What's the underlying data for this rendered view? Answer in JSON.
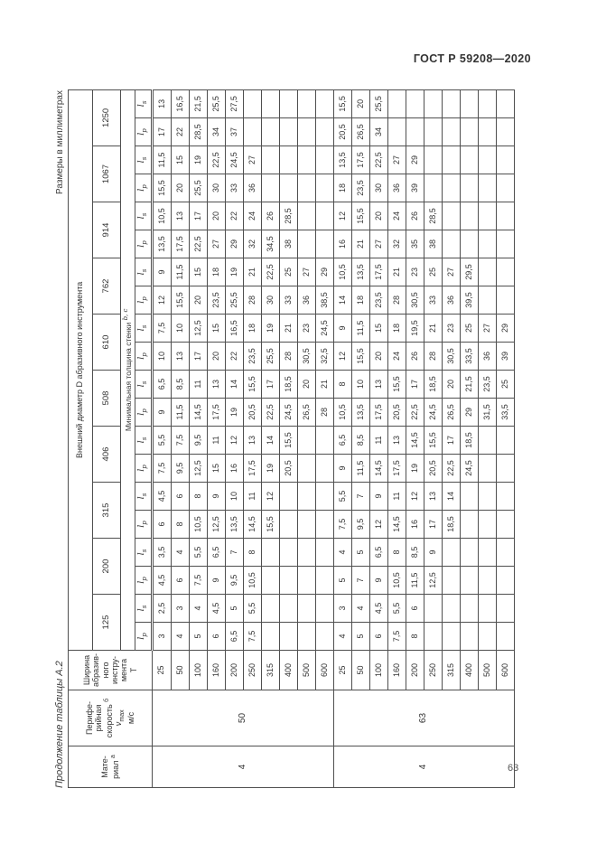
{
  "page": {
    "doc_header": "ГОСТ Р 59208—2020",
    "page_number": "63",
    "table_caption": "Продолжение таблицы А.2",
    "units_note": "Размеры в миллиметрах"
  },
  "table": {
    "diameter_header": "Внешний диаметр D абразивного инструмента",
    "thickness_header": "Минимальная толщина стенки",
    "thickness_note": "b, c",
    "diameters": [
      "125",
      "200",
      "315",
      "406",
      "508",
      "610",
      "762",
      "914",
      "1067",
      "1250"
    ],
    "subcol_base": "l",
    "subcol_subs": [
      "p",
      "s"
    ],
    "stub": {
      "material_lines": [
        "Мате-",
        "риал"
      ],
      "material_note": "а",
      "speed_lines": [
        "Перифе-",
        "рийная",
        "скорость"
      ],
      "speed_note": "б",
      "speed_symbol_base": "v",
      "speed_symbol_sub": "max",
      "speed_units": "м/с",
      "width_lines": [
        "Ширина",
        "абразив-",
        "ного",
        "инстру-",
        "мента",
        "Т"
      ]
    },
    "sections": [
      {
        "material": "4",
        "speed": "50",
        "rows": [
          {
            "t": "25",
            "v": [
              "3",
              "2,5",
              "4,5",
              "3,5",
              "6",
              "4,5",
              "7,5",
              "5,5",
              "9",
              "6,5",
              "10",
              "7,5",
              "12",
              "9",
              "13,5",
              "10,5",
              "15,5",
              "11,5",
              "17",
              "13"
            ]
          },
          {
            "t": "50",
            "v": [
              "4",
              "3",
              "6",
              "4",
              "8",
              "6",
              "9,5",
              "7,5",
              "11,5",
              "8,5",
              "13",
              "10",
              "15,5",
              "11,5",
              "17,5",
              "13",
              "20",
              "15",
              "22",
              "16,5"
            ]
          },
          {
            "t": "100",
            "v": [
              "5",
              "4",
              "7,5",
              "5,5",
              "10,5",
              "8",
              "12,5",
              "9,5",
              "14,5",
              "11",
              "17",
              "12,5",
              "20",
              "15",
              "22,5",
              "17",
              "25,5",
              "19",
              "28,5",
              "21,5"
            ]
          },
          {
            "t": "160",
            "v": [
              "6",
              "4,5",
              "9",
              "6,5",
              "12,5",
              "9",
              "15",
              "11",
              "17,5",
              "13",
              "20",
              "15",
              "23,5",
              "18",
              "27",
              "20",
              "30",
              "22,5",
              "34",
              "25,5"
            ]
          },
          {
            "t": "200",
            "v": [
              "6,5",
              "5",
              "9,5",
              "7",
              "13,5",
              "10",
              "16",
              "12",
              "19",
              "14",
              "22",
              "16,5",
              "25,5",
              "19",
              "29",
              "22",
              "33",
              "24,5",
              "37",
              "27,5"
            ]
          },
          {
            "t": "250",
            "v": [
              "7,5",
              "5,5",
              "10,5",
              "8",
              "14,5",
              "11",
              "17,5",
              "13",
              "20,5",
              "15,5",
              "23,5",
              "18",
              "28",
              "21",
              "32",
              "24",
              "36",
              "27",
              "",
              ""
            ]
          },
          {
            "t": "315",
            "v": [
              "",
              "",
              "",
              "",
              "15,5",
              "12",
              "19",
              "14",
              "22,5",
              "17",
              "25,5",
              "19",
              "30",
              "22,5",
              "34,5",
              "26",
              "",
              "",
              "",
              ""
            ]
          },
          {
            "t": "400",
            "v": [
              "",
              "",
              "",
              "",
              "",
              "",
              "20,5",
              "15,5",
              "24,5",
              "18,5",
              "28",
              "21",
              "33",
              "25",
              "38",
              "28,5",
              "",
              "",
              "",
              ""
            ]
          },
          {
            "t": "500",
            "v": [
              "",
              "",
              "",
              "",
              "",
              "",
              "",
              "",
              "26,5",
              "20",
              "30,5",
              "23",
              "36",
              "27",
              "",
              "",
              "",
              "",
              "",
              ""
            ]
          },
          {
            "t": "600",
            "v": [
              "",
              "",
              "",
              "",
              "",
              "",
              "",
              "",
              "28",
              "21",
              "32,5",
              "24,5",
              "38,5",
              "29",
              "",
              "",
              "",
              "",
              "",
              ""
            ]
          }
        ]
      },
      {
        "material": "4",
        "speed": "63",
        "rows": [
          {
            "t": "25",
            "v": [
              "4",
              "3",
              "5",
              "4",
              "7,5",
              "5,5",
              "9",
              "6,5",
              "10,5",
              "8",
              "12",
              "9",
              "14",
              "10,5",
              "16",
              "12",
              "18",
              "13,5",
              "20,5",
              "15,5"
            ]
          },
          {
            "t": "50",
            "v": [
              "5",
              "4",
              "7",
              "5",
              "9,5",
              "7",
              "11,5",
              "8,5",
              "13,5",
              "10",
              "15,5",
              "11,5",
              "18",
              "13,5",
              "21",
              "15,5",
              "23,5",
              "17,5",
              "26,5",
              "20"
            ]
          },
          {
            "t": "100",
            "v": [
              "6",
              "4,5",
              "9",
              "6,5",
              "12",
              "9",
              "14,5",
              "11",
              "17,5",
              "13",
              "20",
              "15",
              "23,5",
              "17,5",
              "27",
              "20",
              "30",
              "22,5",
              "34",
              "25,5"
            ]
          },
          {
            "t": "160",
            "v": [
              "7,5",
              "5,5",
              "10,5",
              "8",
              "14,5",
              "11",
              "17,5",
              "13",
              "20,5",
              "15,5",
              "24",
              "18",
              "28",
              "21",
              "32",
              "24",
              "36",
              "27",
              "",
              ""
            ]
          },
          {
            "t": "200",
            "v": [
              "8",
              "6",
              "11,5",
              "8,5",
              "16",
              "12",
              "19",
              "14,5",
              "22,5",
              "17",
              "26",
              "19,5",
              "30,5",
              "23",
              "35",
              "26",
              "39",
              "29",
              "",
              ""
            ]
          },
          {
            "t": "250",
            "v": [
              "",
              "",
              "12,5",
              "9",
              "17",
              "13",
              "20,5",
              "15,5",
              "24,5",
              "18,5",
              "28",
              "21",
              "33",
              "25",
              "38",
              "28,5",
              "",
              "",
              "",
              ""
            ]
          },
          {
            "t": "315",
            "v": [
              "",
              "",
              "",
              "",
              "18,5",
              "14",
              "22,5",
              "17",
              "26,5",
              "20",
              "30,5",
              "23",
              "36",
              "27",
              "",
              "",
              "",
              "",
              "",
              ""
            ]
          },
          {
            "t": "400",
            "v": [
              "",
              "",
              "",
              "",
              "",
              "",
              "24,5",
              "18,5",
              "29",
              "21,5",
              "33,5",
              "25",
              "39,5",
              "29,5",
              "",
              "",
              "",
              "",
              "",
              ""
            ]
          },
          {
            "t": "500",
            "v": [
              "",
              "",
              "",
              "",
              "",
              "",
              "",
              "",
              "31,5",
              "23,5",
              "36",
              "27",
              "",
              "",
              "",
              "",
              "",
              "",
              "",
              ""
            ]
          },
          {
            "t": "600",
            "v": [
              "",
              "",
              "",
              "",
              "",
              "",
              "",
              "",
              "33,5",
              "25",
              "39",
              "29",
              "",
              "",
              "",
              "",
              "",
              "",
              "",
              ""
            ]
          }
        ]
      }
    ]
  }
}
